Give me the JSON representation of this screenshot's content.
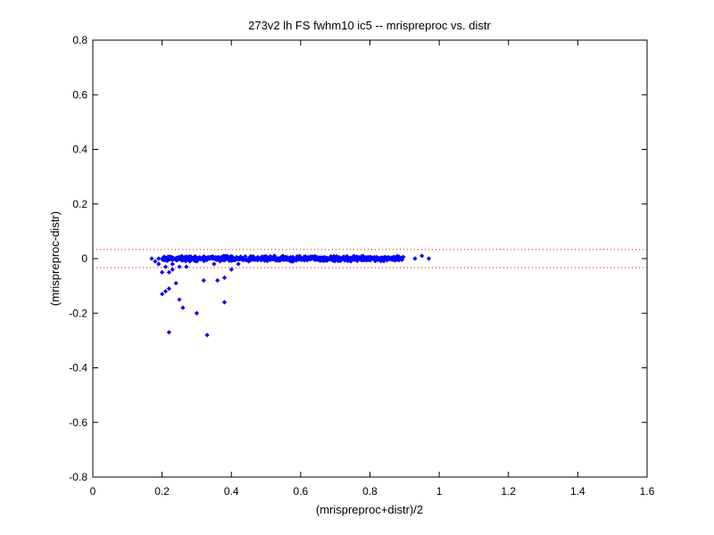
{
  "chart_data": {
    "type": "scatter",
    "title": "273v2 lh FS fwhm10 ic5 -- mrispreproc vs. distr",
    "xlabel": "(mrispreproc+distr)/2",
    "ylabel": "(mrispreproc-distr)",
    "xlim": [
      0,
      1.6
    ],
    "ylim": [
      -0.8,
      0.8
    ],
    "x_ticks": [
      "0",
      "0.2",
      "0.4",
      "0.6",
      "0.8",
      "1",
      "1.2",
      "1.4",
      "1.6"
    ],
    "y_ticks": [
      "0.8",
      "0.6",
      "0.4",
      "0.2",
      "0",
      "-0.2",
      "-0.4",
      "-0.6",
      "-0.8"
    ],
    "grid": false,
    "marker_color": "#0000ff",
    "reference_line_color": "#ff0000",
    "reference_lines_y": [
      0.033,
      -0.033
    ],
    "series": [
      {
        "points": [
          [
            0.17,
            0.0
          ],
          [
            0.18,
            -0.01
          ],
          [
            0.19,
            0.0
          ],
          [
            0.19,
            -0.02
          ],
          [
            0.2,
            -0.05
          ],
          [
            0.2,
            -0.13
          ],
          [
            0.21,
            -0.12
          ],
          [
            0.21,
            -0.03
          ],
          [
            0.22,
            -0.05
          ],
          [
            0.22,
            -0.11
          ],
          [
            0.22,
            -0.27
          ],
          [
            0.23,
            -0.04
          ],
          [
            0.23,
            -0.02
          ],
          [
            0.24,
            -0.09
          ],
          [
            0.25,
            -0.03
          ],
          [
            0.25,
            -0.15
          ],
          [
            0.26,
            -0.18
          ],
          [
            0.27,
            -0.03
          ],
          [
            0.3,
            -0.2
          ],
          [
            0.3,
            -0.01
          ],
          [
            0.32,
            -0.08
          ],
          [
            0.33,
            -0.28
          ],
          [
            0.36,
            -0.08
          ],
          [
            0.38,
            -0.07
          ],
          [
            0.38,
            -0.16
          ],
          [
            0.4,
            -0.04
          ],
          [
            0.35,
            -0.02
          ],
          [
            0.28,
            -0.01
          ],
          [
            0.42,
            -0.02
          ],
          [
            0.45,
            -0.01
          ],
          [
            0.93,
            0.0
          ],
          [
            0.95,
            0.01
          ],
          [
            0.97,
            0.0
          ]
        ],
        "band": {
          "x_range": [
            0.2,
            0.9
          ],
          "y_spread": 0.012,
          "count": 700
        }
      }
    ]
  }
}
